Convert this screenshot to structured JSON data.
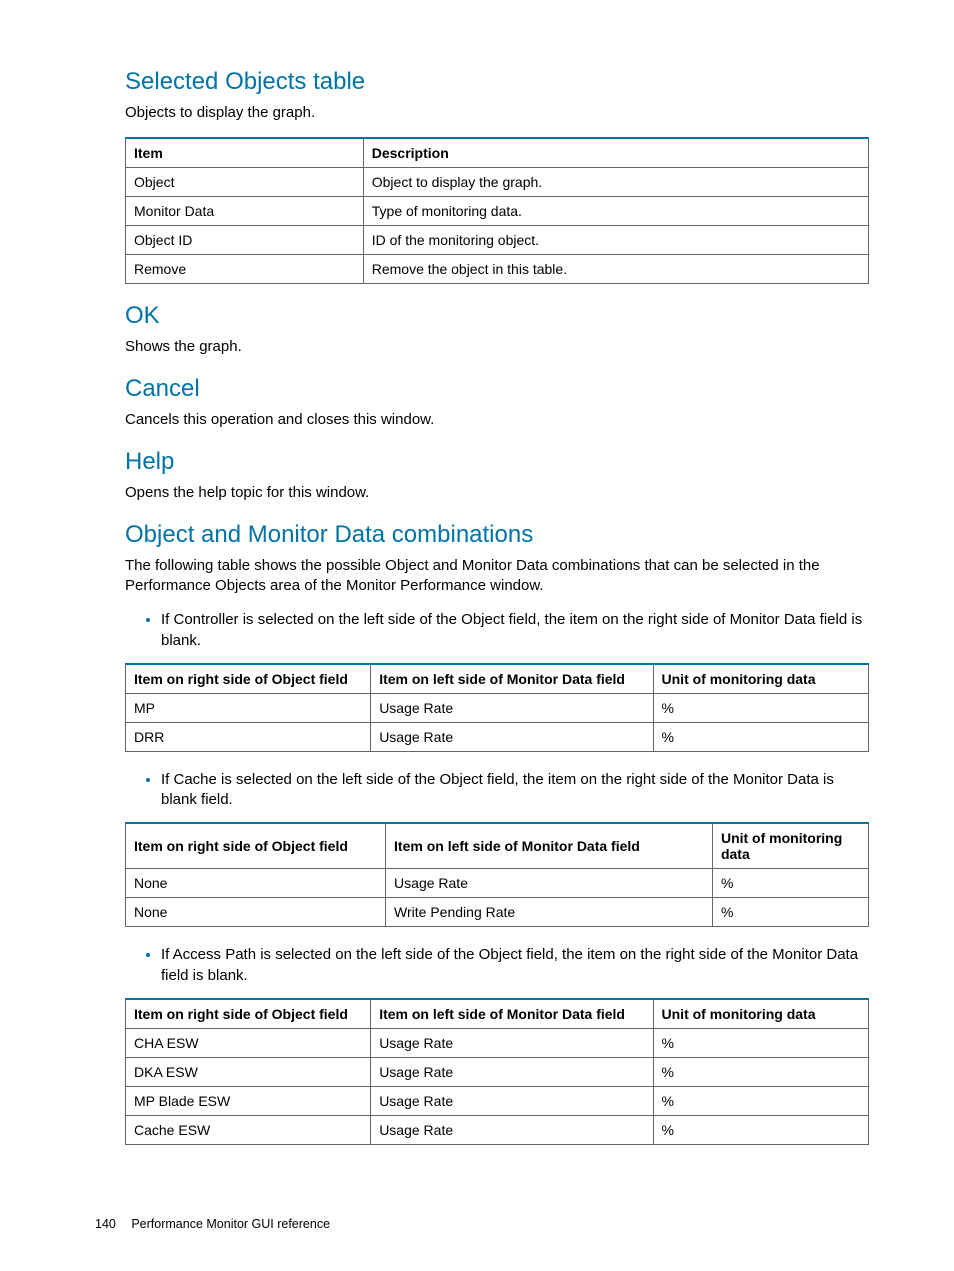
{
  "colors": {
    "heading": "#0073a8",
    "table_top_border": "#0073a8",
    "table_cell_border": "#666666",
    "bullet": "#0073a8",
    "text": "#000000",
    "background": "#ffffff"
  },
  "sections": {
    "selected_objects": {
      "heading": "Selected Objects table",
      "intro": "Objects to display the graph.",
      "table": {
        "columns": [
          "Item",
          "Description"
        ],
        "widths": [
          "32%",
          "68%"
        ],
        "rows": [
          [
            "Object",
            "Object to display the graph."
          ],
          [
            "Monitor Data",
            "Type of monitoring data."
          ],
          [
            "Object ID",
            "ID of the monitoring object."
          ],
          [
            "Remove",
            "Remove the object in this table."
          ]
        ]
      }
    },
    "ok": {
      "heading": "OK",
      "body": "Shows the graph."
    },
    "cancel": {
      "heading": "Cancel",
      "body": "Cancels this operation and closes this window."
    },
    "help": {
      "heading": "Help",
      "body": "Opens the help topic for this window."
    },
    "combos": {
      "heading": "Object and Monitor Data combinations",
      "intro": "The following table shows the possible Object and Monitor Data combinations that can be selected in the Performance Objects area of the Monitor Performance window.",
      "bullet1": "If Controller is selected on the left side of the Object field, the item on the right side of Monitor Data field is blank.",
      "table1": {
        "columns": [
          "Item on right side of Object field",
          "Item on left side of Monitor Data field",
          "Unit of monitoring data"
        ],
        "widths": [
          "33%",
          "38%",
          "29%"
        ],
        "rows": [
          [
            "MP",
            "Usage Rate",
            "%"
          ],
          [
            "DRR",
            "Usage Rate",
            "%"
          ]
        ]
      },
      "bullet2": "If Cache is selected on the left side of the Object field, the item on the right side of the Monitor Data is blank field.",
      "table2": {
        "columns": [
          "Item on right side of Object field",
          "Item on left side of Monitor Data field",
          "Unit of monitoring data"
        ],
        "widths": [
          "35%",
          "44%",
          "21%"
        ],
        "rows": [
          [
            "None",
            "Usage Rate",
            "%"
          ],
          [
            "None",
            "Write Pending Rate",
            "%"
          ]
        ]
      },
      "bullet3": "If Access Path is selected on the left side of the Object field, the item on the right side of the Monitor Data field is blank.",
      "table3": {
        "columns": [
          "Item on right side of Object field",
          "Item on left side of Monitor Data field",
          "Unit of monitoring data"
        ],
        "widths": [
          "33%",
          "38%",
          "29%"
        ],
        "rows": [
          [
            "CHA ESW",
            "Usage Rate",
            "%"
          ],
          [
            "DKA ESW",
            "Usage Rate",
            "%"
          ],
          [
            "MP Blade ESW",
            "Usage Rate",
            "%"
          ],
          [
            "Cache ESW",
            "Usage Rate",
            "%"
          ]
        ]
      }
    }
  },
  "footer": {
    "page_number": "140",
    "title": "Performance Monitor GUI reference"
  }
}
